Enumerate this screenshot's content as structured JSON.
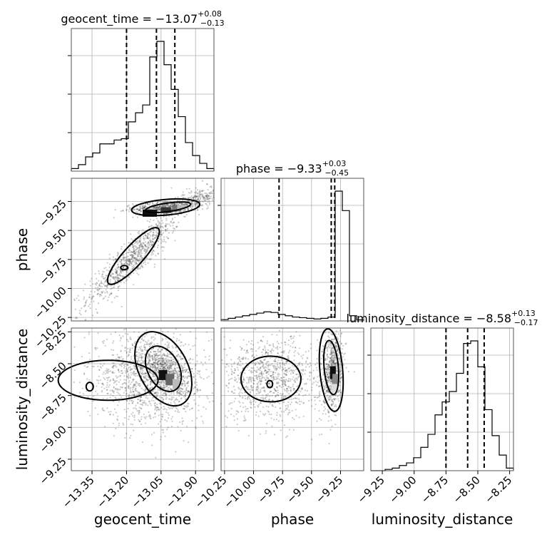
{
  "chart_data": {
    "type": "corner",
    "parameters": [
      {
        "name": "geocent_time",
        "range": [
          -13.44,
          -12.82
        ],
        "ticks": [
          -13.35,
          -13.2,
          -13.05,
          -12.9
        ],
        "tick_labels": [
          "−13.35",
          "−13.20",
          "−13.05",
          "−12.90"
        ],
        "title_main": "geocent_time = −13.07",
        "title_plus": "+0.08",
        "title_minus": "−0.13",
        "median": -13.07,
        "quantiles": [
          -13.2,
          -13.07,
          -12.99
        ],
        "hist": {
          "edges_start": -13.44,
          "bin_width": 0.031,
          "counts": [
            0.02,
            0.05,
            0.11,
            0.14,
            0.21,
            0.21,
            0.24,
            0.25,
            0.38,
            0.45,
            0.51,
            0.88,
            1.0,
            0.82,
            0.63,
            0.42,
            0.22,
            0.12,
            0.06,
            0.02
          ]
        }
      },
      {
        "name": "phase",
        "range": [
          -10.28,
          -9.05
        ],
        "ticks": [
          -10.25,
          -10.0,
          -9.75,
          -9.5,
          -9.25
        ],
        "tick_labels": [
          "−10.25",
          "−10.00",
          "−9.75",
          "−9.50",
          "−9.25"
        ],
        "title_main": "phase = −9.33",
        "title_plus": "+0.03",
        "title_minus": "−0.45",
        "median": -9.33,
        "quantiles": [
          -9.78,
          -9.33,
          -9.3
        ],
        "hist": {
          "edges_start": -10.28,
          "bin_width": 0.0615,
          "counts": [
            0.01,
            0.02,
            0.03,
            0.04,
            0.05,
            0.06,
            0.07,
            0.065,
            0.05,
            0.04,
            0.03,
            0.025,
            0.02,
            0.015,
            0.02,
            0.03,
            1.0,
            0.85,
            0.04,
            0.01
          ]
        }
      },
      {
        "name": "luminosity_distance",
        "range": [
          -9.34,
          -8.22
        ],
        "ticks": [
          -9.25,
          -9.0,
          -8.75,
          -8.5,
          -8.25
        ],
        "tick_labels": [
          "−9.25",
          "−9.00",
          "−8.75",
          "−8.50",
          "−8.25"
        ],
        "title_main": "luminosity_distance = −8.58",
        "title_plus": "+0.13",
        "title_minus": "−0.17",
        "median": -8.58,
        "quantiles": [
          -8.75,
          -8.58,
          -8.45
        ],
        "hist": {
          "edges_start": -9.34,
          "bin_width": 0.056,
          "counts": [
            0.0,
            0.0,
            0.01,
            0.02,
            0.04,
            0.06,
            0.1,
            0.18,
            0.28,
            0.43,
            0.53,
            0.61,
            0.75,
            0.98,
            1.0,
            0.8,
            0.47,
            0.27,
            0.12,
            0.02
          ]
        }
      }
    ],
    "axis_labels": {
      "x": [
        "geocent_time",
        "phase",
        "luminosity_distance"
      ],
      "y": [
        "phase",
        "luminosity_distance"
      ]
    },
    "grid": true
  }
}
